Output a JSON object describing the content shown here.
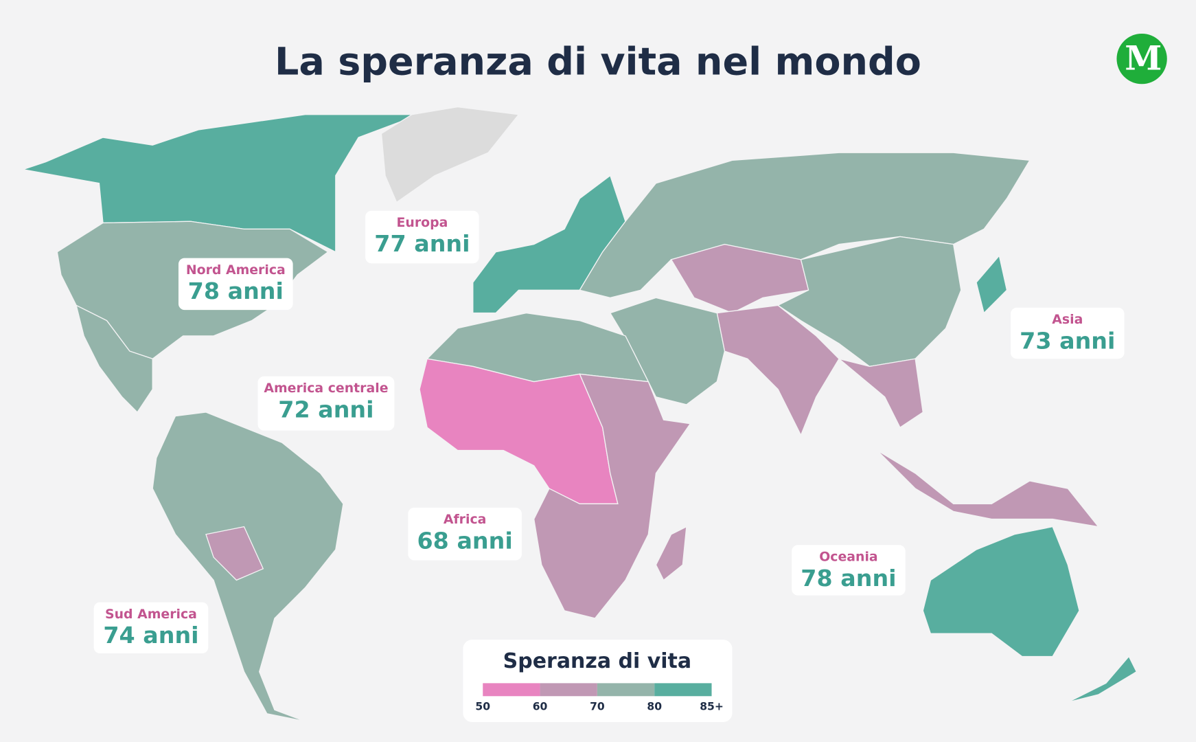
{
  "title": "La speranza di vita nel mondo",
  "logo": "M",
  "regions": [
    {
      "name": "Nord America",
      "label": "78 anni"
    },
    {
      "name": "Europa",
      "label": "77 anni"
    },
    {
      "name": "America centrale",
      "label": "72 anni"
    },
    {
      "name": "Asia",
      "label": "73 anni"
    },
    {
      "name": "Africa",
      "label": "68 anni"
    },
    {
      "name": "Oceania",
      "label": "78 anni"
    },
    {
      "name": "Sud America",
      "label": "74 anni"
    }
  ],
  "legend": {
    "title": "Speranza di vita",
    "colors": [
      "#e884c0",
      "#c098b4",
      "#94b4aa",
      "#58ae9f"
    ],
    "ticks": [
      "50",
      "60",
      "70",
      "80",
      "85+"
    ]
  }
}
